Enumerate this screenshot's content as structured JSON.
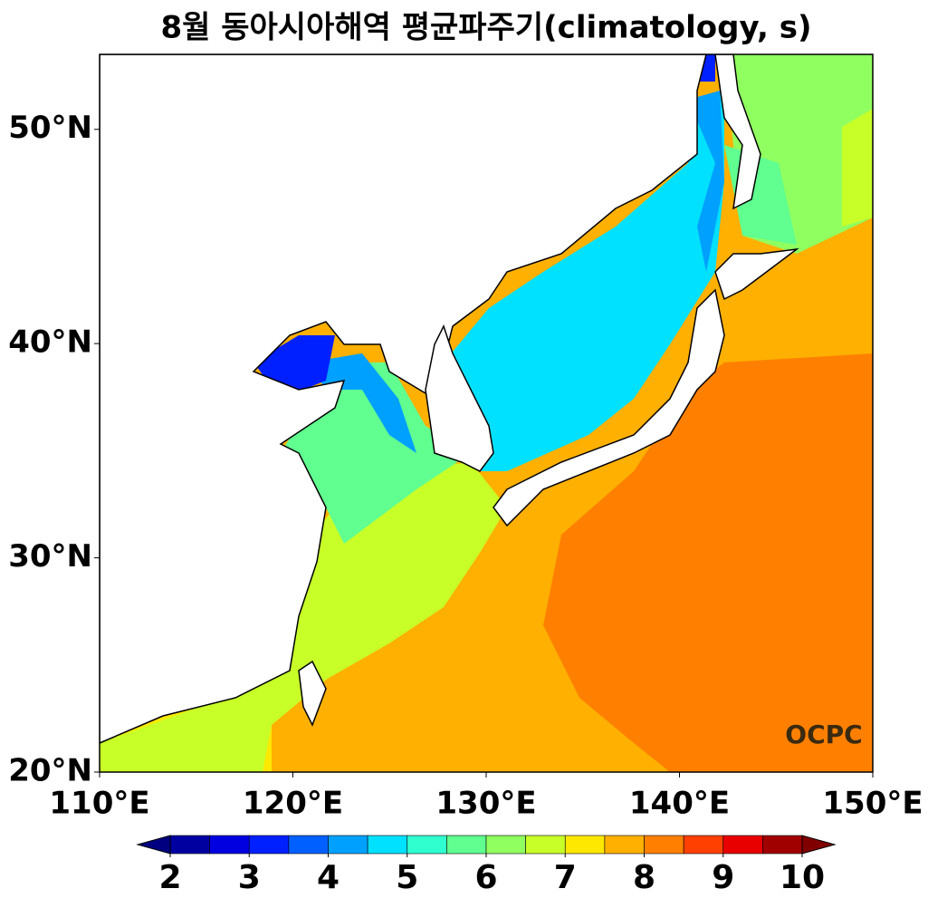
{
  "chart_data": {
    "type": "contour-map",
    "title": "8월 동아시아해역 평균파주기(climatology, s)",
    "xlim": [
      110,
      150
    ],
    "ylim": [
      20,
      53.5
    ],
    "xticks": [
      {
        "value": 110,
        "label": "110°E"
      },
      {
        "value": 120,
        "label": "120°E"
      },
      {
        "value": 130,
        "label": "130°E"
      },
      {
        "value": 140,
        "label": "140°E"
      },
      {
        "value": 150,
        "label": "150°E"
      }
    ],
    "yticks": [
      {
        "value": 20,
        "label": "20°N"
      },
      {
        "value": 30,
        "label": "30°N"
      },
      {
        "value": 40,
        "label": "40°N"
      },
      {
        "value": 50,
        "label": "50°N"
      }
    ],
    "watermark": "OCPC",
    "colorbar": {
      "levels": [
        2,
        2.5,
        3,
        3.5,
        4,
        4.5,
        5,
        5.5,
        6,
        6.5,
        7,
        7.5,
        8,
        8.5,
        9,
        9.5,
        10
      ],
      "colors": [
        "#0000a0",
        "#0000e0",
        "#0020ff",
        "#0060ff",
        "#00a0ff",
        "#00e0ff",
        "#30ffd0",
        "#60ff90",
        "#90ff60",
        "#c8ff28",
        "#ffe800",
        "#ffb000",
        "#ff8000",
        "#ff4000",
        "#e80000",
        "#a00000"
      ],
      "extend_colors": [
        "#000080",
        "#800000"
      ],
      "ticks": [
        2,
        3,
        4,
        5,
        6,
        7,
        8,
        9,
        10
      ]
    }
  }
}
